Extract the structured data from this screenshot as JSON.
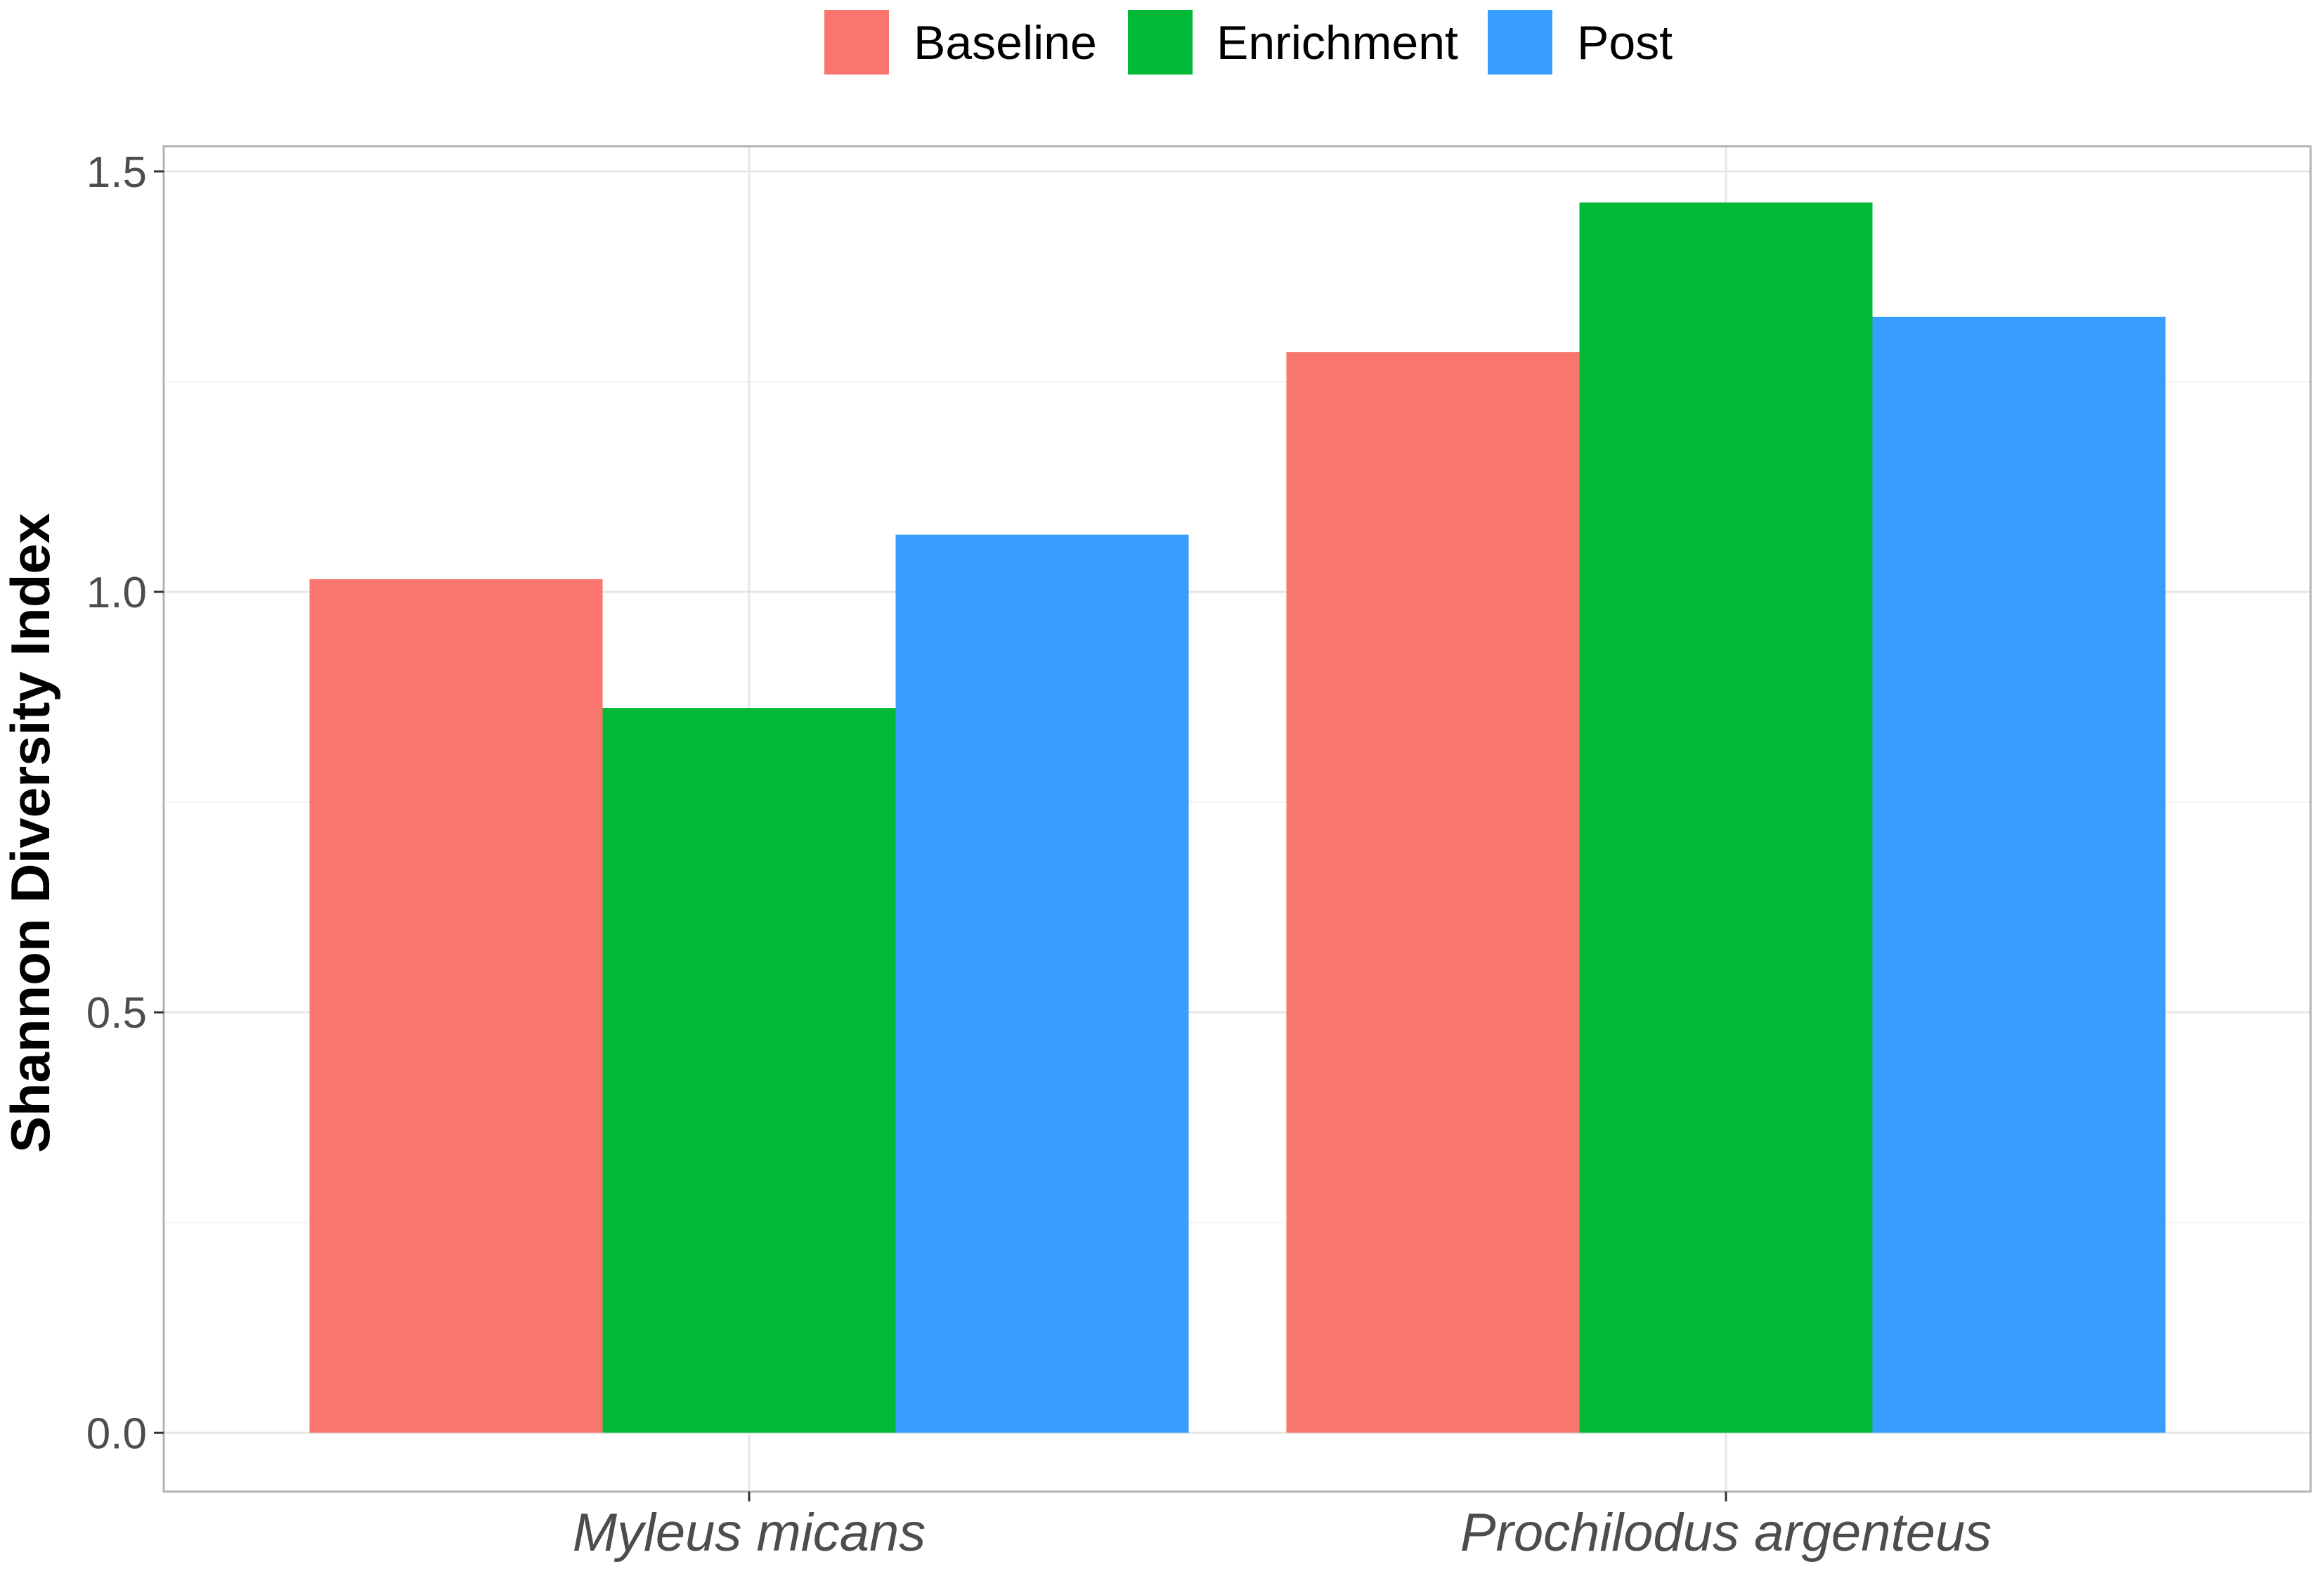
{
  "chart_data": {
    "type": "bar",
    "categories": [
      "Myleus micans",
      "Prochilodus argenteus"
    ],
    "series": [
      {
        "name": "Baseline",
        "color": "#F8766D",
        "values": [
          1.015,
          1.285
        ]
      },
      {
        "name": "Enrichment",
        "color": "#00BA38",
        "values": [
          0.862,
          1.463
        ]
      },
      {
        "name": "Post",
        "color": "#379DFF",
        "values": [
          1.068,
          1.327
        ]
      }
    ],
    "title": "",
    "xlabel": "",
    "ylabel": "Shannon Diversity Index",
    "ylim": [
      -0.07,
      1.53
    ],
    "yticks": [
      0.0,
      0.5,
      1.0,
      1.5
    ],
    "ytick_labels": [
      "0.0",
      "0.5",
      "1.0",
      "1.5"
    ],
    "grid": true,
    "legend_position": "top"
  }
}
